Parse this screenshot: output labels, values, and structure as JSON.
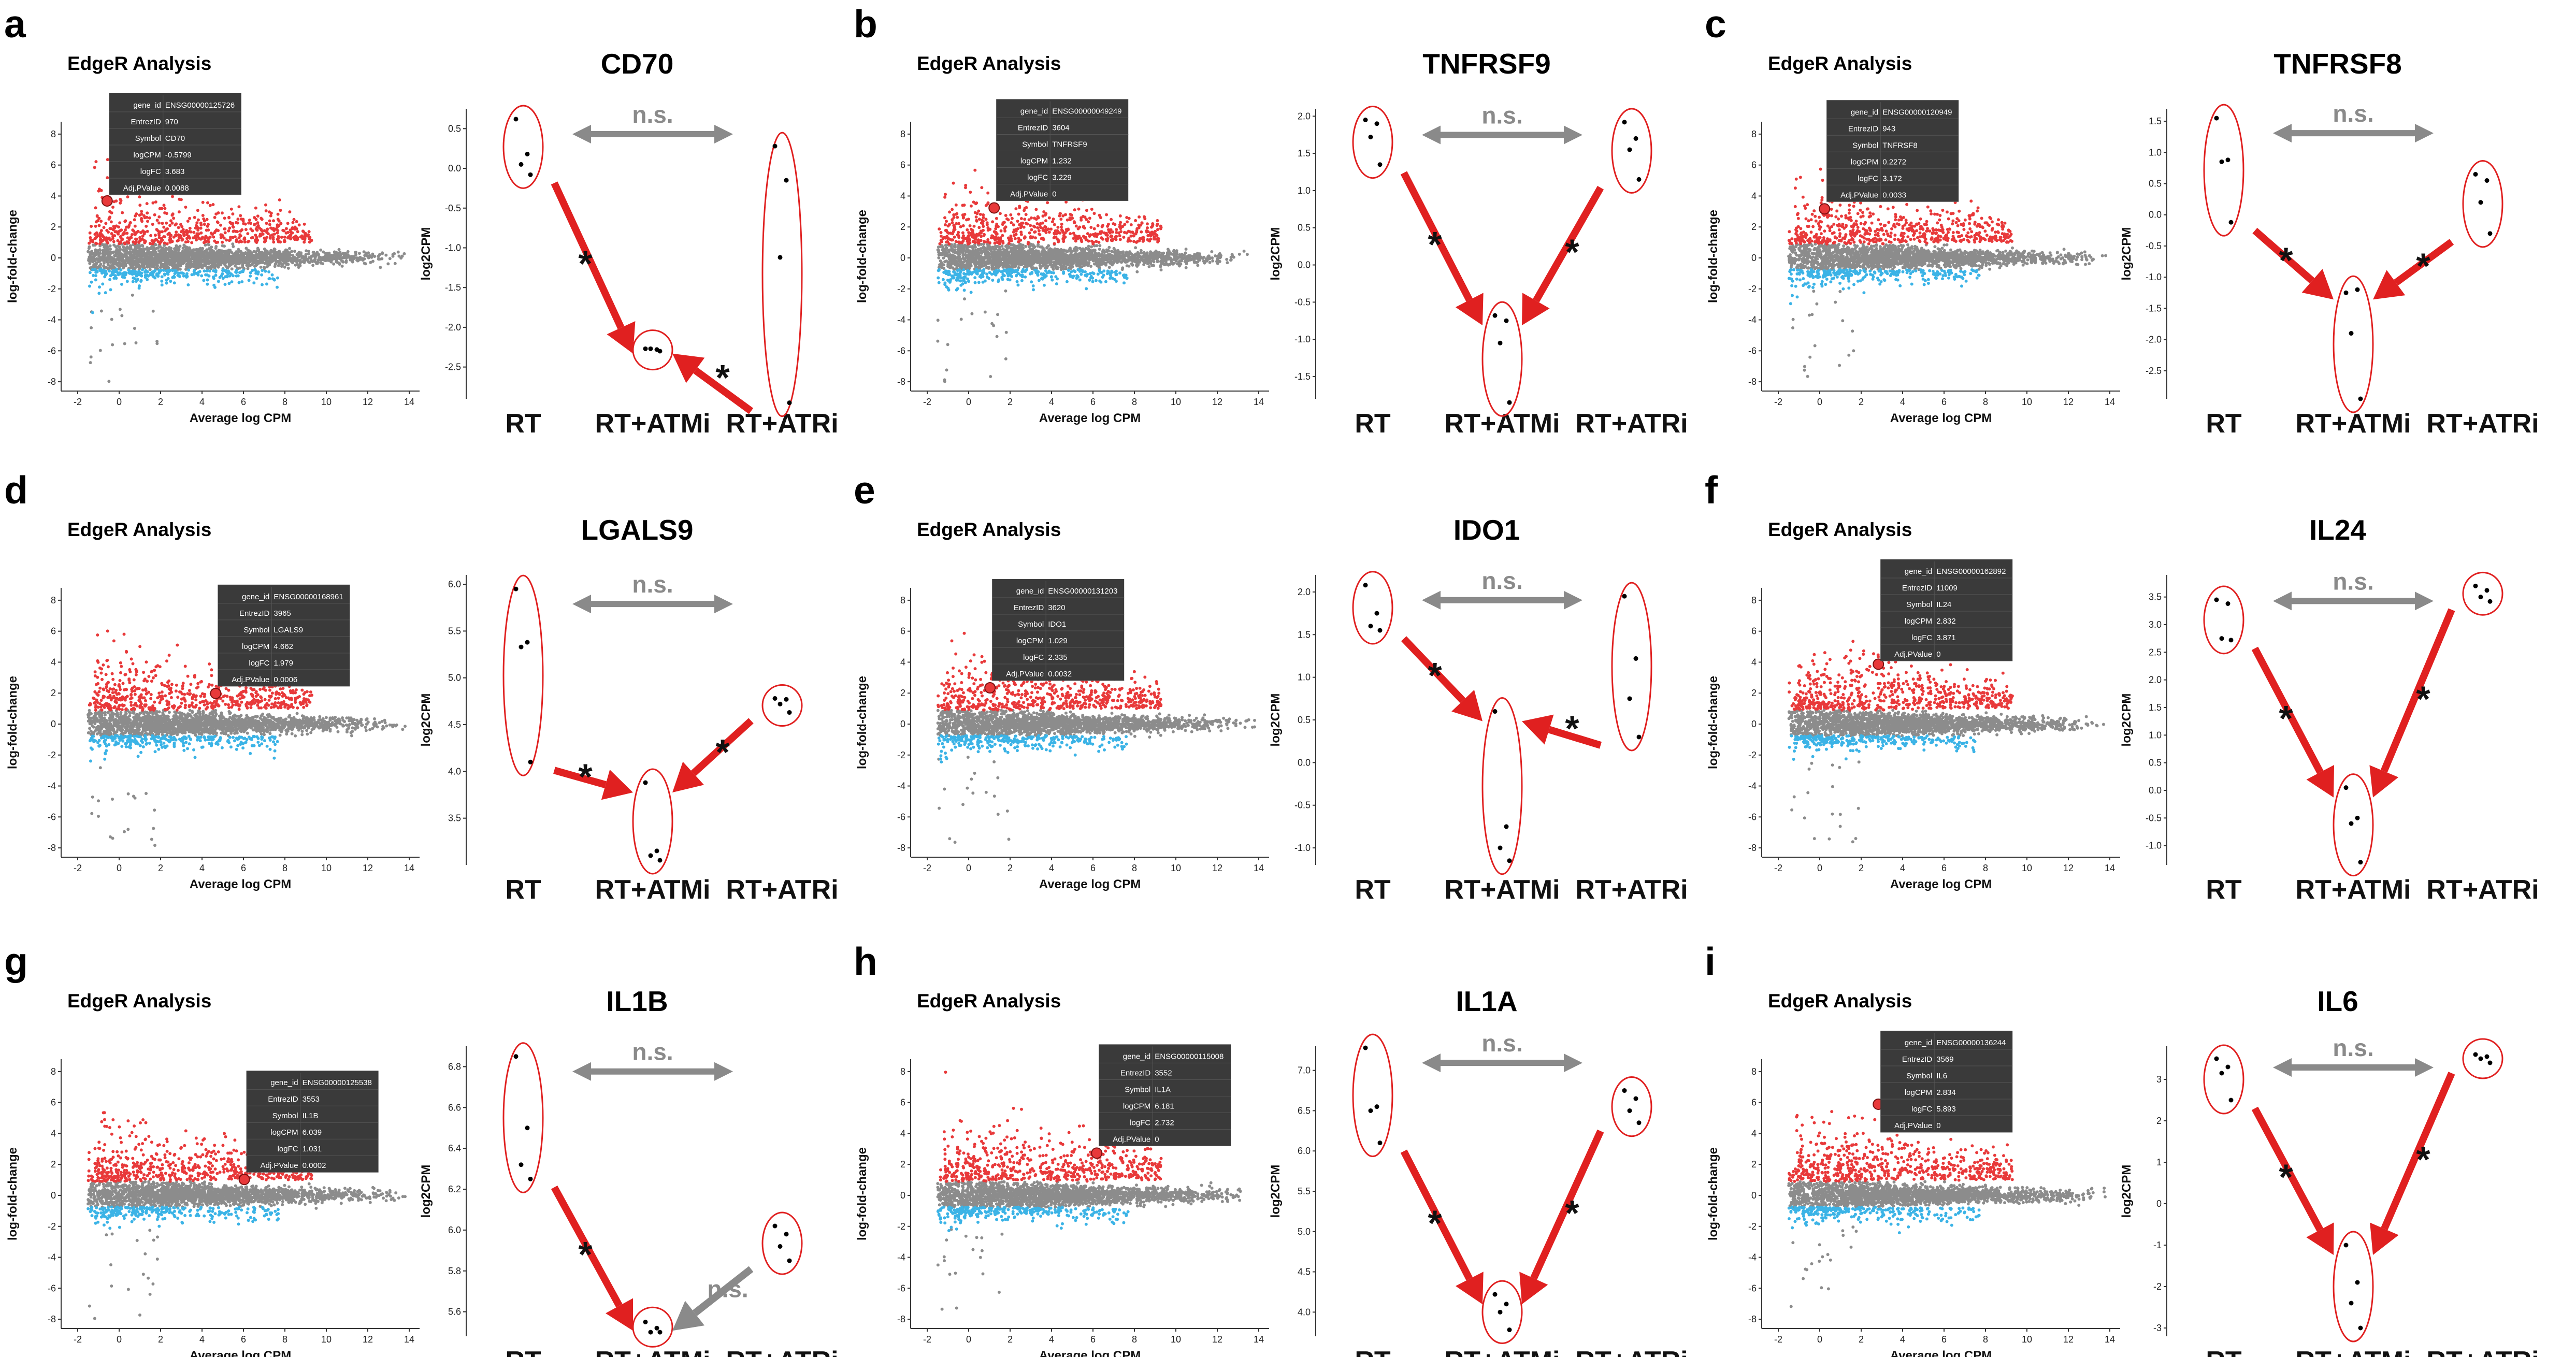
{
  "figure": {
    "ea_title": "EdgeR Analysis",
    "ma_xlabel": "Average log CPM",
    "ma_ylabel": "log-fold-change",
    "expr_ylabel": "log2CPM",
    "ma_xticks": [
      -2,
      0,
      2,
      4,
      6,
      8,
      10,
      12,
      14
    ],
    "ma_yticks": [
      8,
      6,
      4,
      2,
      0,
      -2,
      -4,
      -6,
      -8
    ],
    "groups": [
      "RT",
      "RT+ATMi",
      "RT+ATRi"
    ],
    "ns_label": "n.s.",
    "star_label": "*",
    "tooltip_keys": [
      "gene_id",
      "EntrezID",
      "Symbol",
      "logCPM",
      "logFC",
      "Adj.PValue"
    ],
    "colors": {
      "up": "#e8393a",
      "down": "#3bb3e6",
      "nonsig": "#8c8c8c",
      "arrow": "#e02020",
      "ns_arrow": "#8a8a8a",
      "tooltip": "#3a3a3a"
    }
  },
  "chart_data": [
    {
      "letter": "a",
      "type": "scatter",
      "gene": "CD70",
      "tooltip": {
        "gene_id": "ENSG00000125726",
        "EntrezID": "970",
        "Symbol": "CD70",
        "logCPM": "-0.5799",
        "logFC": "3.683",
        "Adj.PValue": "0.0088"
      },
      "highlight": {
        "x": -0.58,
        "y": 3.68
      },
      "yticks": [
        "0.5",
        "0.0",
        "-0.5",
        "-1.0",
        "-1.5",
        "-2.0",
        "-2.5"
      ],
      "ylim": [
        -2.9,
        0.75
      ],
      "RT": [
        0.62,
        0.18,
        0.05,
        -0.08
      ],
      "ATMi": [
        -2.27,
        -2.28,
        -2.27,
        -2.3
      ],
      "ATRi": [
        0.28,
        -0.15,
        -1.12,
        -2.95
      ],
      "left_arrow": "*",
      "right_arrow": "*",
      "top_arrow": "n.s."
    },
    {
      "letter": "b",
      "type": "scatter",
      "gene": "TNFRSF9",
      "tooltip": {
        "gene_id": "ENSG00000049249",
        "EntrezID": "3604",
        "Symbol": "TNFRSF9",
        "logCPM": "1.232",
        "logFC": "3.229",
        "Adj.PValue": "0"
      },
      "highlight": {
        "x": 1.23,
        "y": 3.23
      },
      "yticks": [
        "2.0",
        "1.5",
        "1.0",
        "0.5",
        "0.0",
        "-0.5",
        "-1.0",
        "-1.5"
      ],
      "ylim": [
        -1.8,
        2.1
      ],
      "RT": [
        1.95,
        1.9,
        1.72,
        1.35
      ],
      "ATMi": [
        -0.68,
        -0.75,
        -1.05,
        -1.85
      ],
      "ATRi": [
        1.92,
        1.7,
        1.55,
        1.15
      ],
      "left_arrow": "*",
      "right_arrow": "*",
      "top_arrow": "n.s."
    },
    {
      "letter": "c",
      "type": "scatter",
      "gene": "TNFRSF8",
      "tooltip": {
        "gene_id": "ENSG00000120949",
        "EntrezID": "943",
        "Symbol": "TNFRSF8",
        "logCPM": "0.2272",
        "logFC": "3.172",
        "Adj.PValue": "0.0033"
      },
      "highlight": {
        "x": 0.23,
        "y": 3.17
      },
      "yticks": [
        "1.5",
        "1.0",
        "0.5",
        "0.0",
        "-0.5",
        "-1.0",
        "-1.5",
        "-2.0",
        "-2.5"
      ],
      "ylim": [
        -2.95,
        1.7
      ],
      "RT": [
        1.55,
        0.88,
        0.85,
        -0.12
      ],
      "ATMi": [
        -1.25,
        -1.2,
        -1.9,
        -2.95
      ],
      "ATRi": [
        0.65,
        0.55,
        0.2,
        -0.3
      ],
      "left_arrow": "*",
      "right_arrow": "*",
      "top_arrow": "n.s."
    },
    {
      "letter": "d",
      "type": "scatter",
      "gene": "LGALS9",
      "tooltip": {
        "gene_id": "ENSG00000168961",
        "EntrezID": "3965",
        "Symbol": "LGALS9",
        "logCPM": "4.662",
        "logFC": "1.979",
        "Adj.PValue": "0.0006"
      },
      "highlight": {
        "x": 4.66,
        "y": 1.98
      },
      "yticks": [
        "6.0",
        "5.5",
        "5.0",
        "4.5",
        "4.0",
        "3.5"
      ],
      "ylim": [
        3.0,
        6.1
      ],
      "RT": [
        5.95,
        5.38,
        5.33,
        4.1
      ],
      "ATMi": [
        3.88,
        3.15,
        3.1,
        3.05
      ],
      "ATRi": [
        4.78,
        4.77,
        4.72,
        4.63
      ],
      "left_arrow": "*",
      "right_arrow": "*",
      "top_arrow": "n.s."
    },
    {
      "letter": "e",
      "type": "scatter",
      "gene": "IDO1",
      "tooltip": {
        "gene_id": "ENSG00000131203",
        "EntrezID": "3620",
        "Symbol": "IDO1",
        "logCPM": "1.029",
        "logFC": "2.335",
        "Adj.PValue": "0.0032"
      },
      "highlight": {
        "x": 1.03,
        "y": 2.34
      },
      "yticks": [
        "2.0",
        "1.5",
        "1.0",
        "0.5",
        "0.0",
        "-0.5",
        "-1.0"
      ],
      "ylim": [
        -1.2,
        2.2
      ],
      "RT": [
        2.08,
        1.75,
        1.6,
        1.55
      ],
      "ATMi": [
        0.6,
        -0.75,
        -1.0,
        -1.15
      ],
      "ATRi": [
        1.95,
        1.22,
        0.75,
        0.3
      ],
      "left_arrow": "*",
      "right_arrow": "*",
      "top_arrow": "n.s."
    },
    {
      "letter": "f",
      "type": "scatter",
      "gene": "IL24",
      "tooltip": {
        "gene_id": "ENSG00000162892",
        "EntrezID": "11009",
        "Symbol": "IL24",
        "logCPM": "2.832",
        "logFC": "3.871",
        "Adj.PValue": "0"
      },
      "highlight": {
        "x": 2.83,
        "y": 3.87
      },
      "yticks": [
        "3.5",
        "3.0",
        "2.5",
        "2.0",
        "1.5",
        "1.0",
        "0.5",
        "0.0",
        "-0.5",
        "-1.0"
      ],
      "ylim": [
        -1.35,
        3.9
      ],
      "RT": [
        3.45,
        3.38,
        2.75,
        2.72
      ],
      "ATMi": [
        0.05,
        -0.5,
        -0.6,
        -1.3
      ],
      "ATRi": [
        3.7,
        3.62,
        3.5,
        3.42
      ],
      "left_arrow": "*",
      "right_arrow": "*",
      "top_arrow": "n.s."
    },
    {
      "letter": "g",
      "type": "scatter",
      "gene": "IL1B",
      "tooltip": {
        "gene_id": "ENSG00000125538",
        "EntrezID": "3553",
        "Symbol": "IL1B",
        "logCPM": "6.039",
        "logFC": "1.031",
        "Adj.PValue": "0.0002"
      },
      "highlight": {
        "x": 6.04,
        "y": 1.03
      },
      "yticks": [
        "6.8",
        "6.6",
        "6.4",
        "6.2",
        "6.0",
        "5.8",
        "5.6"
      ],
      "ylim": [
        5.48,
        6.9
      ],
      "RT": [
        6.85,
        6.5,
        6.32,
        6.25
      ],
      "ATMi": [
        5.55,
        5.52,
        5.5,
        5.5
      ],
      "ATRi": [
        6.02,
        5.98,
        5.92,
        5.85
      ],
      "left_arrow": "*",
      "right_arrow": "n.s.",
      "top_arrow": "n.s."
    },
    {
      "letter": "h",
      "type": "scatter",
      "gene": "IL1A",
      "tooltip": {
        "gene_id": "ENSG00000115008",
        "EntrezID": "3552",
        "Symbol": "IL1A",
        "logCPM": "6.181",
        "logFC": "2.732",
        "Adj.PValue": "0"
      },
      "highlight": {
        "x": 6.18,
        "y": 2.73
      },
      "yticks": [
        "7.0",
        "6.5",
        "6.0",
        "5.5",
        "5.0",
        "4.5",
        "4.0"
      ],
      "ylim": [
        3.7,
        7.3
      ],
      "RT": [
        7.28,
        6.55,
        6.5,
        6.1
      ],
      "ATMi": [
        4.22,
        4.1,
        4.0,
        3.78
      ],
      "ATRi": [
        6.75,
        6.65,
        6.5,
        6.35
      ],
      "left_arrow": "*",
      "right_arrow": "*",
      "top_arrow": "n.s."
    },
    {
      "letter": "i",
      "type": "scatter",
      "gene": "IL6",
      "tooltip": {
        "gene_id": "ENSG00000136244",
        "EntrezID": "3569",
        "Symbol": "IL6",
        "logCPM": "2.834",
        "logFC": "5.893",
        "Adj.PValue": "0"
      },
      "highlight": {
        "x": 2.83,
        "y": 5.89
      },
      "yticks": [
        "3",
        "2",
        "1",
        "0",
        "-1",
        "-2",
        "-3"
      ],
      "ylim": [
        -3.2,
        3.8
      ],
      "RT": [
        3.5,
        3.3,
        3.15,
        2.5
      ],
      "ATMi": [
        -1.0,
        -1.9,
        -2.4,
        -3.0
      ],
      "ATRi": [
        3.6,
        3.55,
        3.5,
        3.4
      ],
      "left_arrow": "*",
      "right_arrow": "*",
      "top_arrow": "n.s."
    }
  ]
}
